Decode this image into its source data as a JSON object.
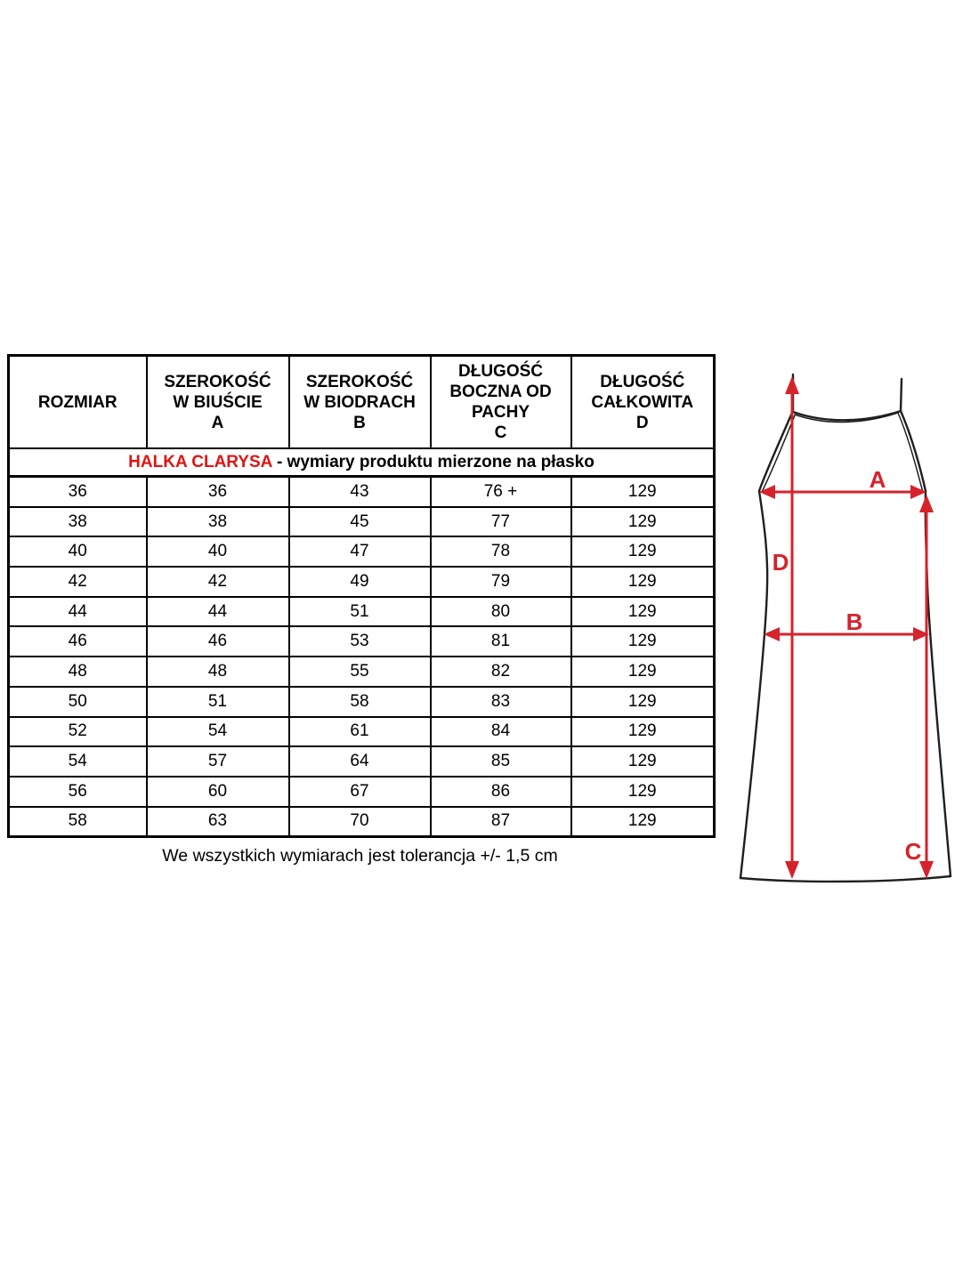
{
  "table": {
    "title": {
      "product_name": "HALKA CLARYSA",
      "description": " - wymiary produktu mierzone na płasko"
    },
    "columns": [
      {
        "key": "rozmiar",
        "lines": [
          "ROZMIAR"
        ]
      },
      {
        "key": "szerokosc-w-biuscie-a",
        "lines": [
          "SZEROKOŚĆ",
          "W BIUŚCIE",
          "A"
        ]
      },
      {
        "key": "szerokosc-w-biodrach-b",
        "lines": [
          "SZEROKOŚĆ",
          "W BIODRACH",
          "B"
        ]
      },
      {
        "key": "dlugosc-boczna-od-pachy-c",
        "lines": [
          "DŁUGOŚĆ",
          "BOCZNA OD",
          "PACHY",
          "C"
        ]
      },
      {
        "key": "dlugosc-calkowita-d",
        "lines": [
          "DŁUGOŚĆ",
          "CAŁKOWITA",
          "D"
        ]
      }
    ],
    "rows": [
      [
        "36",
        "36",
        "43",
        "76 +",
        "129"
      ],
      [
        "38",
        "38",
        "45",
        "77",
        "129"
      ],
      [
        "40",
        "40",
        "47",
        "78",
        "129"
      ],
      [
        "42",
        "42",
        "49",
        "79",
        "129"
      ],
      [
        "44",
        "44",
        "51",
        "80",
        "129"
      ],
      [
        "46",
        "46",
        "53",
        "81",
        "129"
      ],
      [
        "48",
        "48",
        "55",
        "82",
        "129"
      ],
      [
        "50",
        "51",
        "58",
        "83",
        "129"
      ],
      [
        "52",
        "54",
        "61",
        "84",
        "129"
      ],
      [
        "54",
        "57",
        "64",
        "85",
        "129"
      ],
      [
        "56",
        "60",
        "67",
        "86",
        "129"
      ],
      [
        "58",
        "63",
        "70",
        "87",
        "129"
      ]
    ],
    "footnote": "We wszystkich wymiarach jest tolerancja +/- 1,5 cm"
  },
  "diagram": {
    "labels": {
      "a": "A",
      "b": "B",
      "c": "C",
      "d": "D"
    },
    "arrow_color": "#d5232b",
    "outline_color": "#1f1f1f"
  },
  "colors": {
    "title_red": "#e01414",
    "text_black": "#000000",
    "border_black": "#000000",
    "background": "#ffffff"
  }
}
